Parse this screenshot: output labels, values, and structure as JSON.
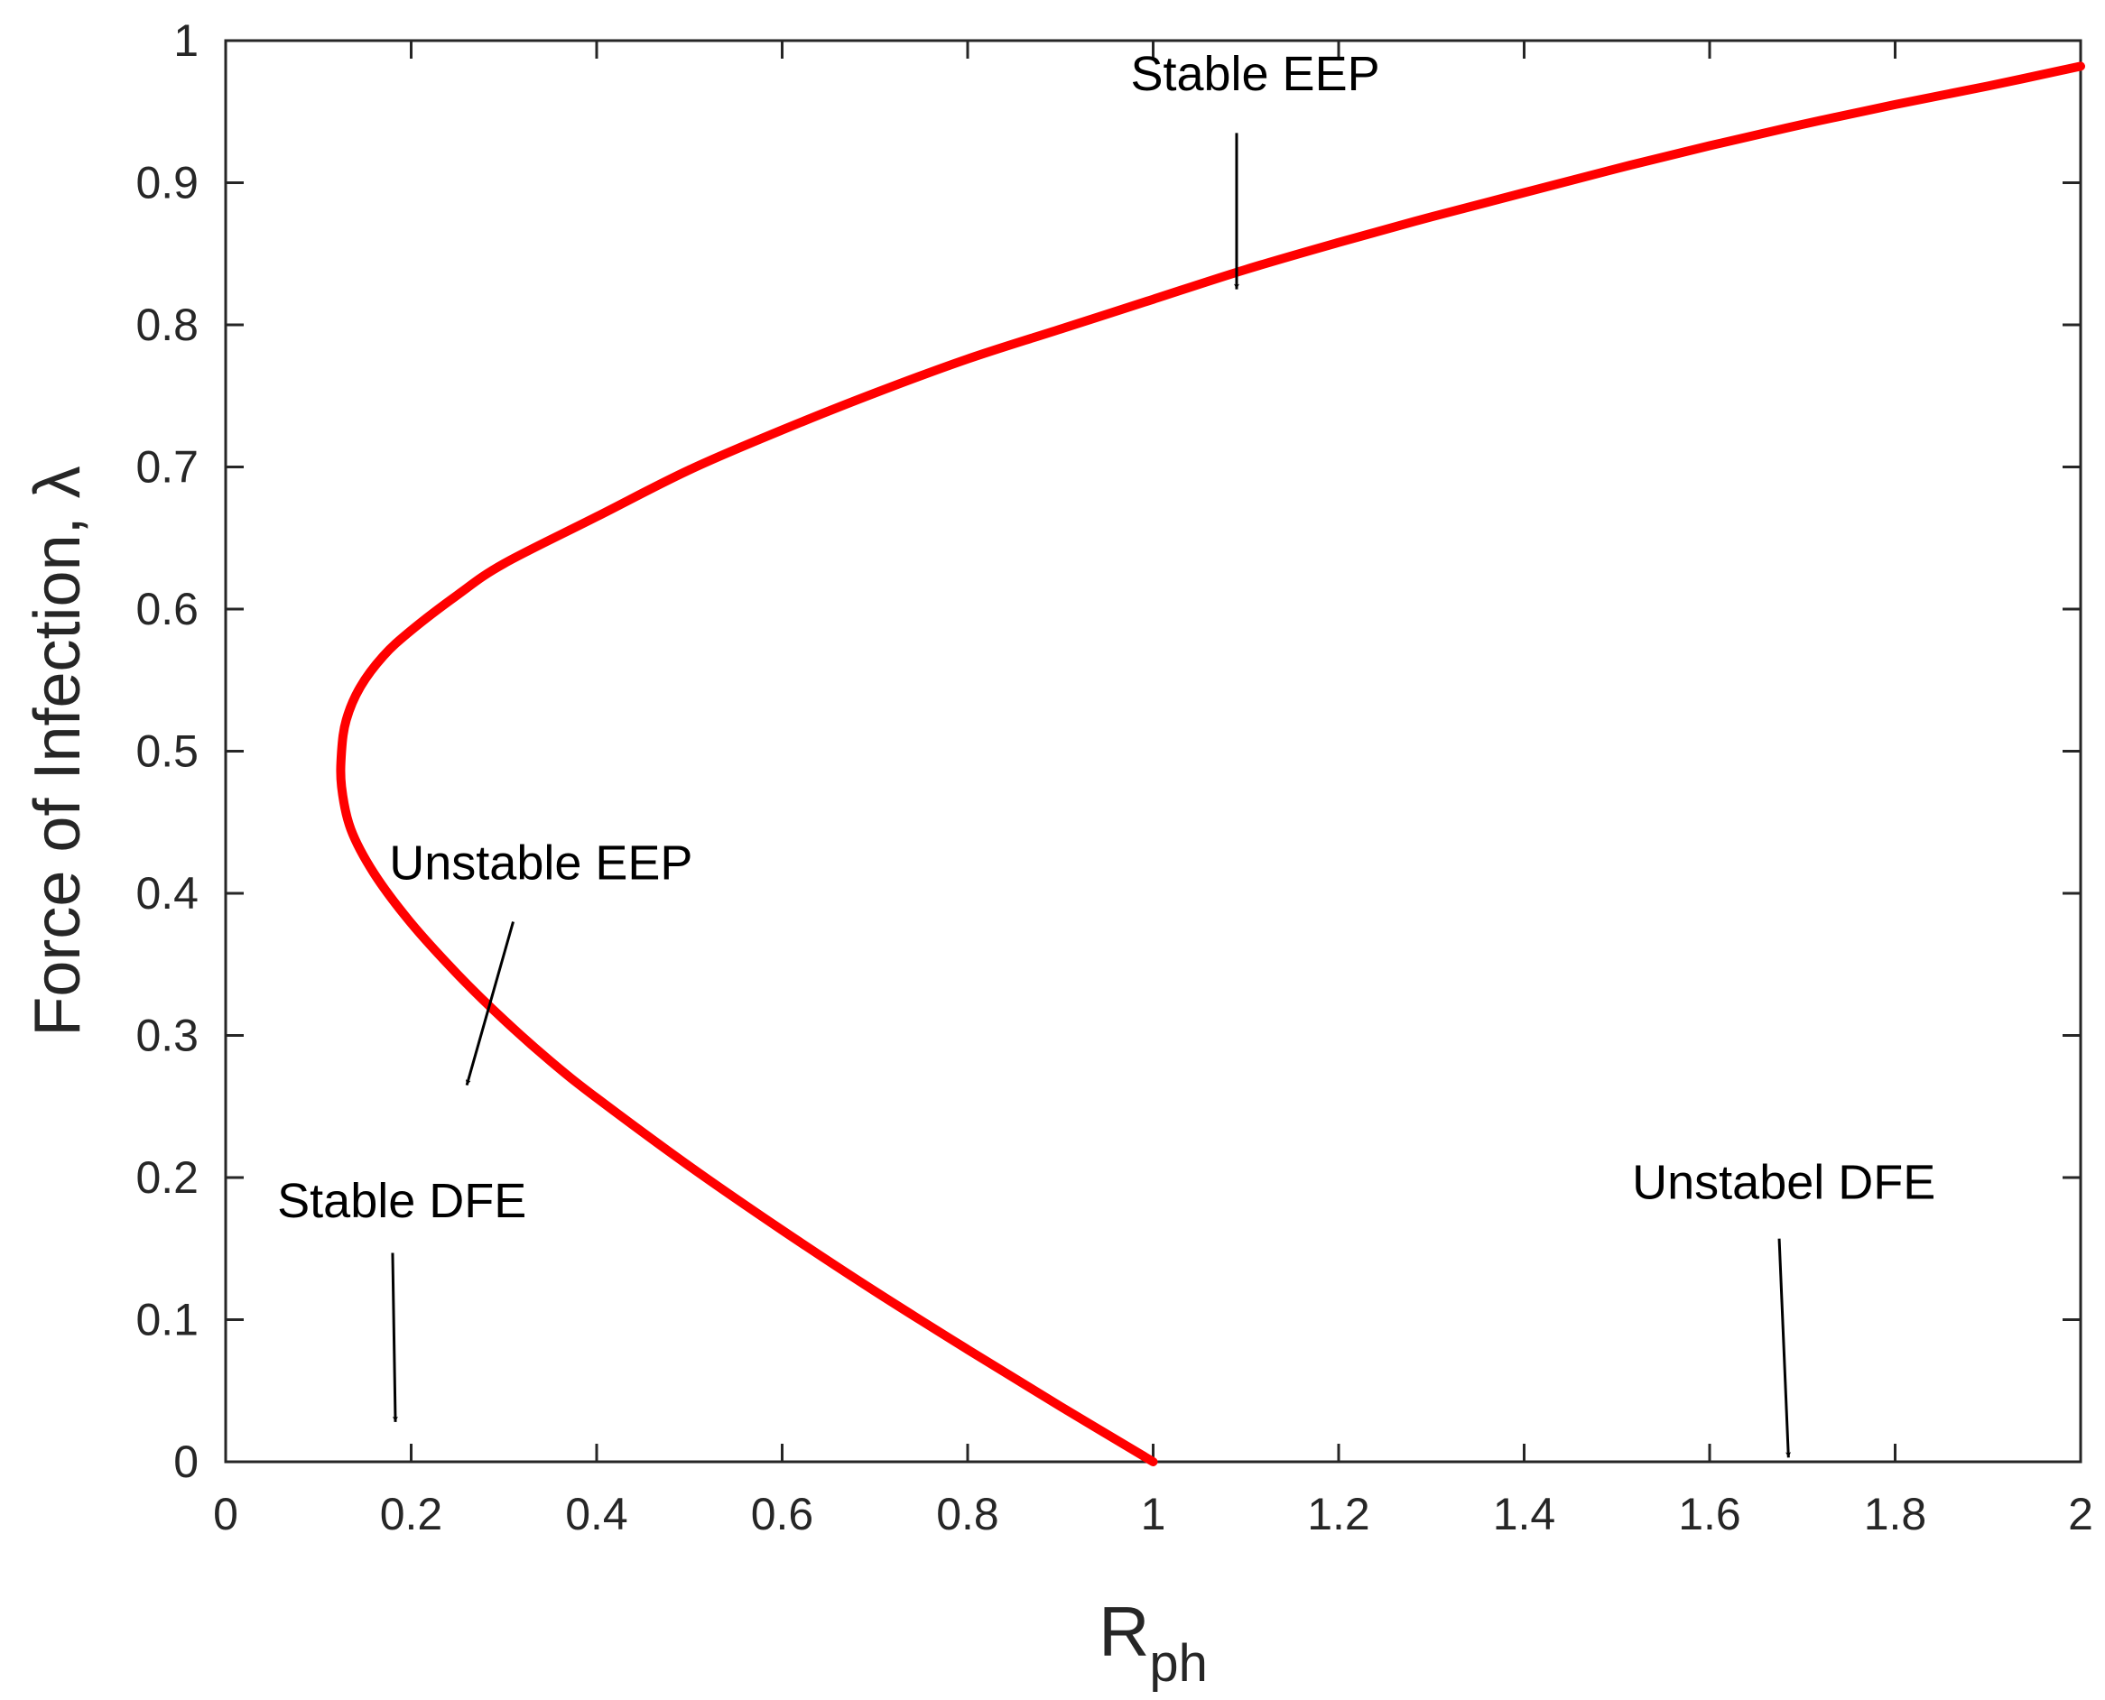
{
  "chart_data": {
    "type": "line",
    "title": "",
    "xlabel": {
      "base": "R",
      "subscript": "ph"
    },
    "ylabel": "Force of Infection, λ",
    "xlim": [
      0,
      2
    ],
    "ylim": [
      0,
      1
    ],
    "x_ticks": [
      0,
      0.2,
      0.4,
      0.6,
      0.8,
      1,
      1.2,
      1.4,
      1.6,
      1.8,
      2
    ],
    "x_tick_labels": [
      "0",
      "0.2",
      "0.4",
      "0.6",
      "0.8",
      "1",
      "1.2",
      "1.4",
      "1.6",
      "1.8",
      "2"
    ],
    "y_ticks": [
      0,
      0.1,
      0.2,
      0.3,
      0.4,
      0.5,
      0.6,
      0.7,
      0.8,
      0.9,
      1
    ],
    "y_tick_labels": [
      "0",
      "0.1",
      "0.2",
      "0.3",
      "0.4",
      "0.5",
      "0.6",
      "0.7",
      "0.8",
      "0.9",
      "1"
    ],
    "grid": false,
    "line_color": "#ff0000",
    "series": [
      {
        "x": [
          1.0,
          0.9,
          0.8,
          0.7,
          0.6,
          0.5,
          0.4,
          0.35,
          0.3,
          0.25,
          0.2,
          0.16,
          0.135,
          0.125,
          0.125,
          0.13,
          0.145,
          0.17,
          0.2,
          0.25,
          0.3,
          0.4,
          0.5,
          0.6,
          0.7,
          0.8,
          0.9,
          1.0,
          1.1,
          1.2,
          1.3,
          1.4,
          1.5,
          1.6,
          1.7,
          1.8,
          1.9,
          2.0
        ],
        "y": [
          0.0,
          0.039,
          0.079,
          0.12,
          0.163,
          0.208,
          0.256,
          0.282,
          0.311,
          0.343,
          0.379,
          0.414,
          0.445,
          0.475,
          0.5,
          0.522,
          0.545,
          0.567,
          0.585,
          0.61,
          0.632,
          0.665,
          0.698,
          0.726,
          0.752,
          0.776,
          0.797,
          0.818,
          0.839,
          0.858,
          0.876,
          0.893,
          0.91,
          0.926,
          0.941,
          0.955,
          0.968,
          0.982
        ]
      }
    ],
    "annotations": [
      {
        "text": "Stable EEP",
        "text_x": 1.11,
        "text_y": 0.965,
        "arrow_from": [
          1.09,
          0.935
        ],
        "arrow_to": [
          1.09,
          0.825
        ]
      },
      {
        "text": "Unstable EEP",
        "text_x": 0.34,
        "text_y": 0.41,
        "arrow_from": [
          0.31,
          0.38
        ],
        "arrow_to": [
          0.26,
          0.265
        ]
      },
      {
        "text": "Stable DFE",
        "text_x": 0.19,
        "text_y": 0.172,
        "arrow_from": [
          0.18,
          0.147
        ],
        "arrow_to": [
          0.183,
          0.028
        ]
      },
      {
        "text": "Unstabel DFE",
        "text_x": 1.68,
        "text_y": 0.185,
        "arrow_from": [
          1.675,
          0.157
        ],
        "arrow_to": [
          1.685,
          0.003
        ]
      }
    ]
  }
}
